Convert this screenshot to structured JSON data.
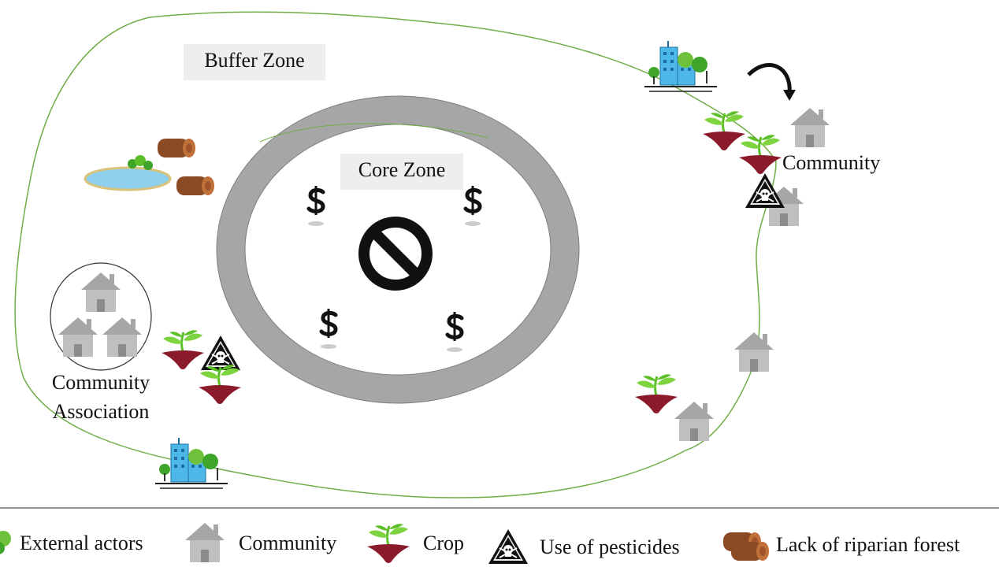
{
  "labels": {
    "buffer_zone": "Buffer Zone",
    "core_zone": "Core Zone",
    "community": "Community",
    "community_association": [
      "Community",
      "Association"
    ]
  },
  "legend": [
    {
      "label": "External actors"
    },
    {
      "label": "Community"
    },
    {
      "label": "Crop"
    },
    {
      "label": "Use of pesticides"
    },
    {
      "label": "Lack of riparian forest"
    }
  ]
}
